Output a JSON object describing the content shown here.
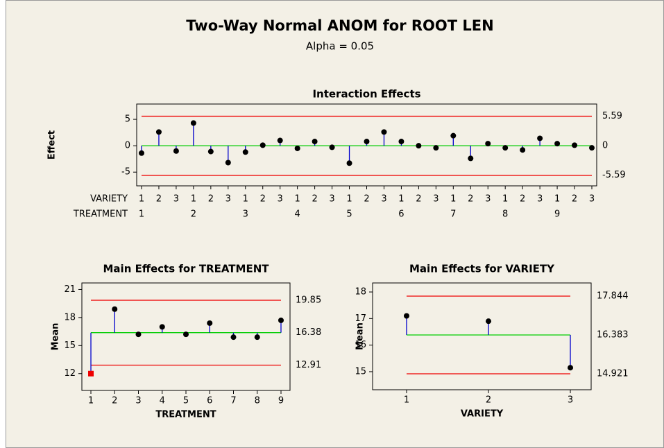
{
  "title": "Two-Way Normal ANOM for ROOT LEN",
  "subtitle": "Alpha = 0.05",
  "chart_data": [
    {
      "type": "anom",
      "title": "Interaction Effects",
      "ylabel": "Effect",
      "x": [
        1,
        2,
        3,
        4,
        5,
        6,
        7,
        8,
        9,
        10,
        11,
        12,
        13,
        14,
        15,
        16,
        17,
        18,
        19,
        20,
        21,
        22,
        23,
        24,
        25,
        26,
        27
      ],
      "values": [
        -1.4,
        2.6,
        -1.0,
        4.3,
        -1.1,
        -3.2,
        -1.2,
        0.1,
        1.0,
        -0.5,
        0.8,
        -0.3,
        -3.3,
        0.8,
        2.6,
        0.8,
        0.0,
        -0.4,
        1.9,
        -2.4,
        0.4,
        -0.4,
        -0.8,
        1.4,
        0.4,
        0.1,
        -0.4
      ],
      "xlim": [
        0.72,
        27.28
      ],
      "ylim": [
        -7.6,
        7.9
      ],
      "yticks": [
        -5,
        0,
        5
      ],
      "decision_limits": {
        "upper": 5.59,
        "center": 0,
        "lower": -5.59
      },
      "x_rows": [
        {
          "name": "VARIETY",
          "labels": [
            "1",
            "2",
            "3",
            "1",
            "2",
            "3",
            "1",
            "2",
            "3",
            "1",
            "2",
            "3",
            "1",
            "2",
            "3",
            "1",
            "2",
            "3",
            "1",
            "2",
            "3",
            "1",
            "2",
            "3",
            "1",
            "2",
            "3"
          ]
        },
        {
          "name": "TREATMENT",
          "labels": [
            "1",
            null,
            null,
            "2",
            null,
            null,
            "3",
            null,
            null,
            "4",
            null,
            null,
            "5",
            null,
            null,
            "6",
            null,
            null,
            "7",
            null,
            null,
            "8",
            null,
            null,
            "9",
            null,
            null
          ]
        }
      ],
      "stem_color": "#0000cc",
      "marker_color": "#000000",
      "limit_color": "#ee0000",
      "center_color": "#00cc00",
      "out_of_limits_marker": {
        "color": "#ee0000",
        "shape": "square"
      }
    },
    {
      "type": "anom",
      "title": "Main Effects for TREATMENT",
      "ylabel": "Mean",
      "xlabel": "TREATMENT",
      "x": [
        1,
        2,
        3,
        4,
        5,
        6,
        7,
        8,
        9
      ],
      "values": [
        12.0,
        18.9,
        16.2,
        17.0,
        16.2,
        17.4,
        15.9,
        15.9,
        17.7
      ],
      "xlim": [
        0.62,
        9.38
      ],
      "xticks": [
        1,
        2,
        3,
        4,
        5,
        6,
        7,
        8,
        9
      ],
      "ylim": [
        10.2,
        21.7
      ],
      "yticks": [
        12,
        15,
        18,
        21
      ],
      "decision_limits": {
        "upper": 19.85,
        "center": 16.38,
        "lower": 12.91
      },
      "stem_color": "#0000cc",
      "marker_color": "#000000",
      "limit_color": "#ee0000",
      "center_color": "#00cc00",
      "out_of_limits_marker": {
        "color": "#ee0000",
        "shape": "square"
      }
    },
    {
      "type": "anom",
      "title": "Main Effects for VARIETY",
      "ylabel": "Mean",
      "xlabel": "VARIETY",
      "x": [
        1,
        2,
        3
      ],
      "values": [
        17.1,
        16.9,
        15.15
      ],
      "xlim": [
        0.585,
        3.254
      ],
      "xticks": [
        1,
        2,
        3
      ],
      "ylim": [
        14.32,
        18.34
      ],
      "yticks": [
        15,
        16,
        17,
        18
      ],
      "decision_limits": {
        "upper": 17.844,
        "center": 16.383,
        "lower": 14.921
      },
      "stem_color": "#0000cc",
      "marker_color": "#000000",
      "limit_color": "#ee0000",
      "center_color": "#00cc00",
      "out_of_limits_marker": {
        "color": "#ee0000",
        "shape": "square"
      }
    }
  ]
}
